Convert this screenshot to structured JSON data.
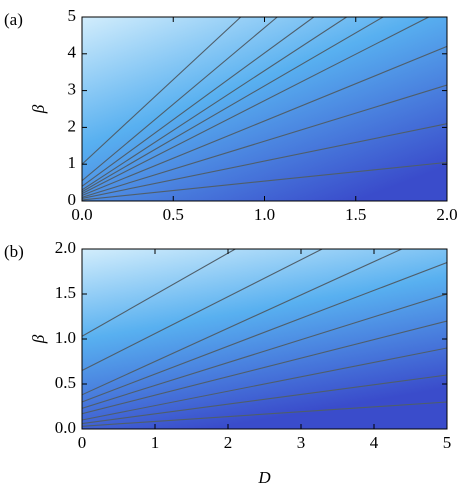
{
  "chart_data": [
    {
      "type": "contour",
      "panel_label": "(a)",
      "ylabel": "β",
      "line_color": "#4f5e6a",
      "xlim": [
        0,
        2
      ],
      "ylim": [
        0,
        5
      ],
      "xticks": [
        {
          "value": 0,
          "label": "0.0"
        },
        {
          "value": 0.5,
          "label": "0.5"
        },
        {
          "value": 1,
          "label": "1.0"
        },
        {
          "value": 1.5,
          "label": "1.5"
        },
        {
          "value": 2,
          "label": "2.0"
        }
      ],
      "yticks": [
        0,
        1,
        2,
        3,
        4,
        5
      ],
      "series": [
        {
          "x": [
            0,
            2
          ],
          "values": [
            0.03,
            1.05
          ]
        },
        {
          "x": [
            0,
            2
          ],
          "values": [
            0.07,
            2.1
          ]
        },
        {
          "x": [
            0,
            2
          ],
          "values": [
            0.1,
            3.15
          ]
        },
        {
          "x": [
            0,
            2
          ],
          "values": [
            0.15,
            4.2
          ]
        },
        {
          "x": [
            0,
            1.9
          ],
          "values": [
            0.2,
            5
          ]
        },
        {
          "x": [
            0,
            1.65
          ],
          "values": [
            0.25,
            5
          ]
        },
        {
          "x": [
            0,
            1.45
          ],
          "values": [
            0.3,
            5
          ]
        },
        {
          "x": [
            0,
            1.27
          ],
          "values": [
            0.4,
            5
          ]
        },
        {
          "x": [
            0,
            1.07
          ],
          "values": [
            0.55,
            5
          ]
        },
        {
          "x": [
            0,
            0.87
          ],
          "values": [
            1.0,
            5
          ]
        }
      ]
    },
    {
      "type": "contour",
      "panel_label": "(b)",
      "ylabel": "β",
      "xlabel": "D",
      "line_color": "#4f5e6a",
      "xlim": [
        0,
        5
      ],
      "ylim": [
        0,
        2
      ],
      "xticks": [
        0,
        1,
        2,
        3,
        4,
        5
      ],
      "yticks": [
        {
          "value": 0,
          "label": "0.0"
        },
        {
          "value": 0.5,
          "label": "0.5"
        },
        {
          "value": 1,
          "label": "1.0"
        },
        {
          "value": 1.5,
          "label": "1.5"
        },
        {
          "value": 2,
          "label": "2.0"
        }
      ],
      "series": [
        {
          "x": [
            0,
            5
          ],
          "values": [
            0.03,
            0.3
          ]
        },
        {
          "x": [
            0,
            5
          ],
          "values": [
            0.06,
            0.6
          ]
        },
        {
          "x": [
            0,
            5
          ],
          "values": [
            0.1,
            0.9
          ]
        },
        {
          "x": [
            0,
            5
          ],
          "values": [
            0.17,
            1.2
          ]
        },
        {
          "x": [
            0,
            5
          ],
          "values": [
            0.23,
            1.5
          ]
        },
        {
          "x": [
            0,
            5
          ],
          "values": [
            0.3,
            1.85
          ]
        },
        {
          "x": [
            0,
            4.38
          ],
          "values": [
            0.38,
            2
          ]
        },
        {
          "x": [
            0,
            3.29
          ],
          "values": [
            0.65,
            2
          ]
        },
        {
          "x": [
            0,
            2.1
          ],
          "values": [
            1.03,
            2
          ]
        }
      ]
    }
  ]
}
